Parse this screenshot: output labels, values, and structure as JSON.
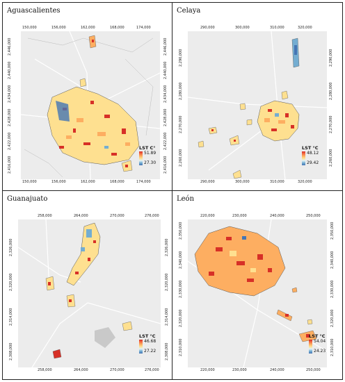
{
  "panels": [
    {
      "title": "Aguascalientes",
      "x_ticks": [
        "150,000",
        "156,000",
        "162,000",
        "168,000",
        "174,000"
      ],
      "y_ticks": [
        "2,446,000",
        "2,440,000",
        "2,434,000",
        "2,428,000",
        "2,422,000",
        "2,416,000"
      ],
      "legend_title": "LST C°",
      "legend_max": "51.89",
      "legend_min": "27.30"
    },
    {
      "title": "Celaya",
      "x_ticks": [
        "290,000",
        "300,000",
        "310,000",
        "320,000"
      ],
      "y_ticks": [
        "2,290,000",
        "2,280,000",
        "2,270,000",
        "2,260,000"
      ],
      "legend_title": "LST °C",
      "legend_max": "48.12",
      "legend_min": "29.42"
    },
    {
      "title": "Guanajuato",
      "x_ticks": [
        "258,000",
        "264,000",
        "270,000",
        "276,000"
      ],
      "y_ticks": [
        "2,326,000",
        "2,320,000",
        "2,314,000",
        "2,308,000"
      ],
      "legend_title": "LST °C",
      "legend_max": "46.68",
      "legend_min": "27.22"
    },
    {
      "title": "León",
      "x_ticks": [
        "220,000",
        "230,000",
        "240,000",
        "250,000"
      ],
      "y_ticks": [
        "2,350,000",
        "2,340,000",
        "2,330,000",
        "2,320,000",
        "2,310,000"
      ],
      "legend_title": "LST °C",
      "legend_max": "54.04",
      "legend_min": "24.23"
    }
  ],
  "colors": {
    "hot": "#d73027",
    "warm": "#fdae61",
    "mild": "#fee090",
    "cool": "#74add1",
    "cold": "#4575b4",
    "basemap": "#ececec",
    "roads": "#ffffff"
  }
}
